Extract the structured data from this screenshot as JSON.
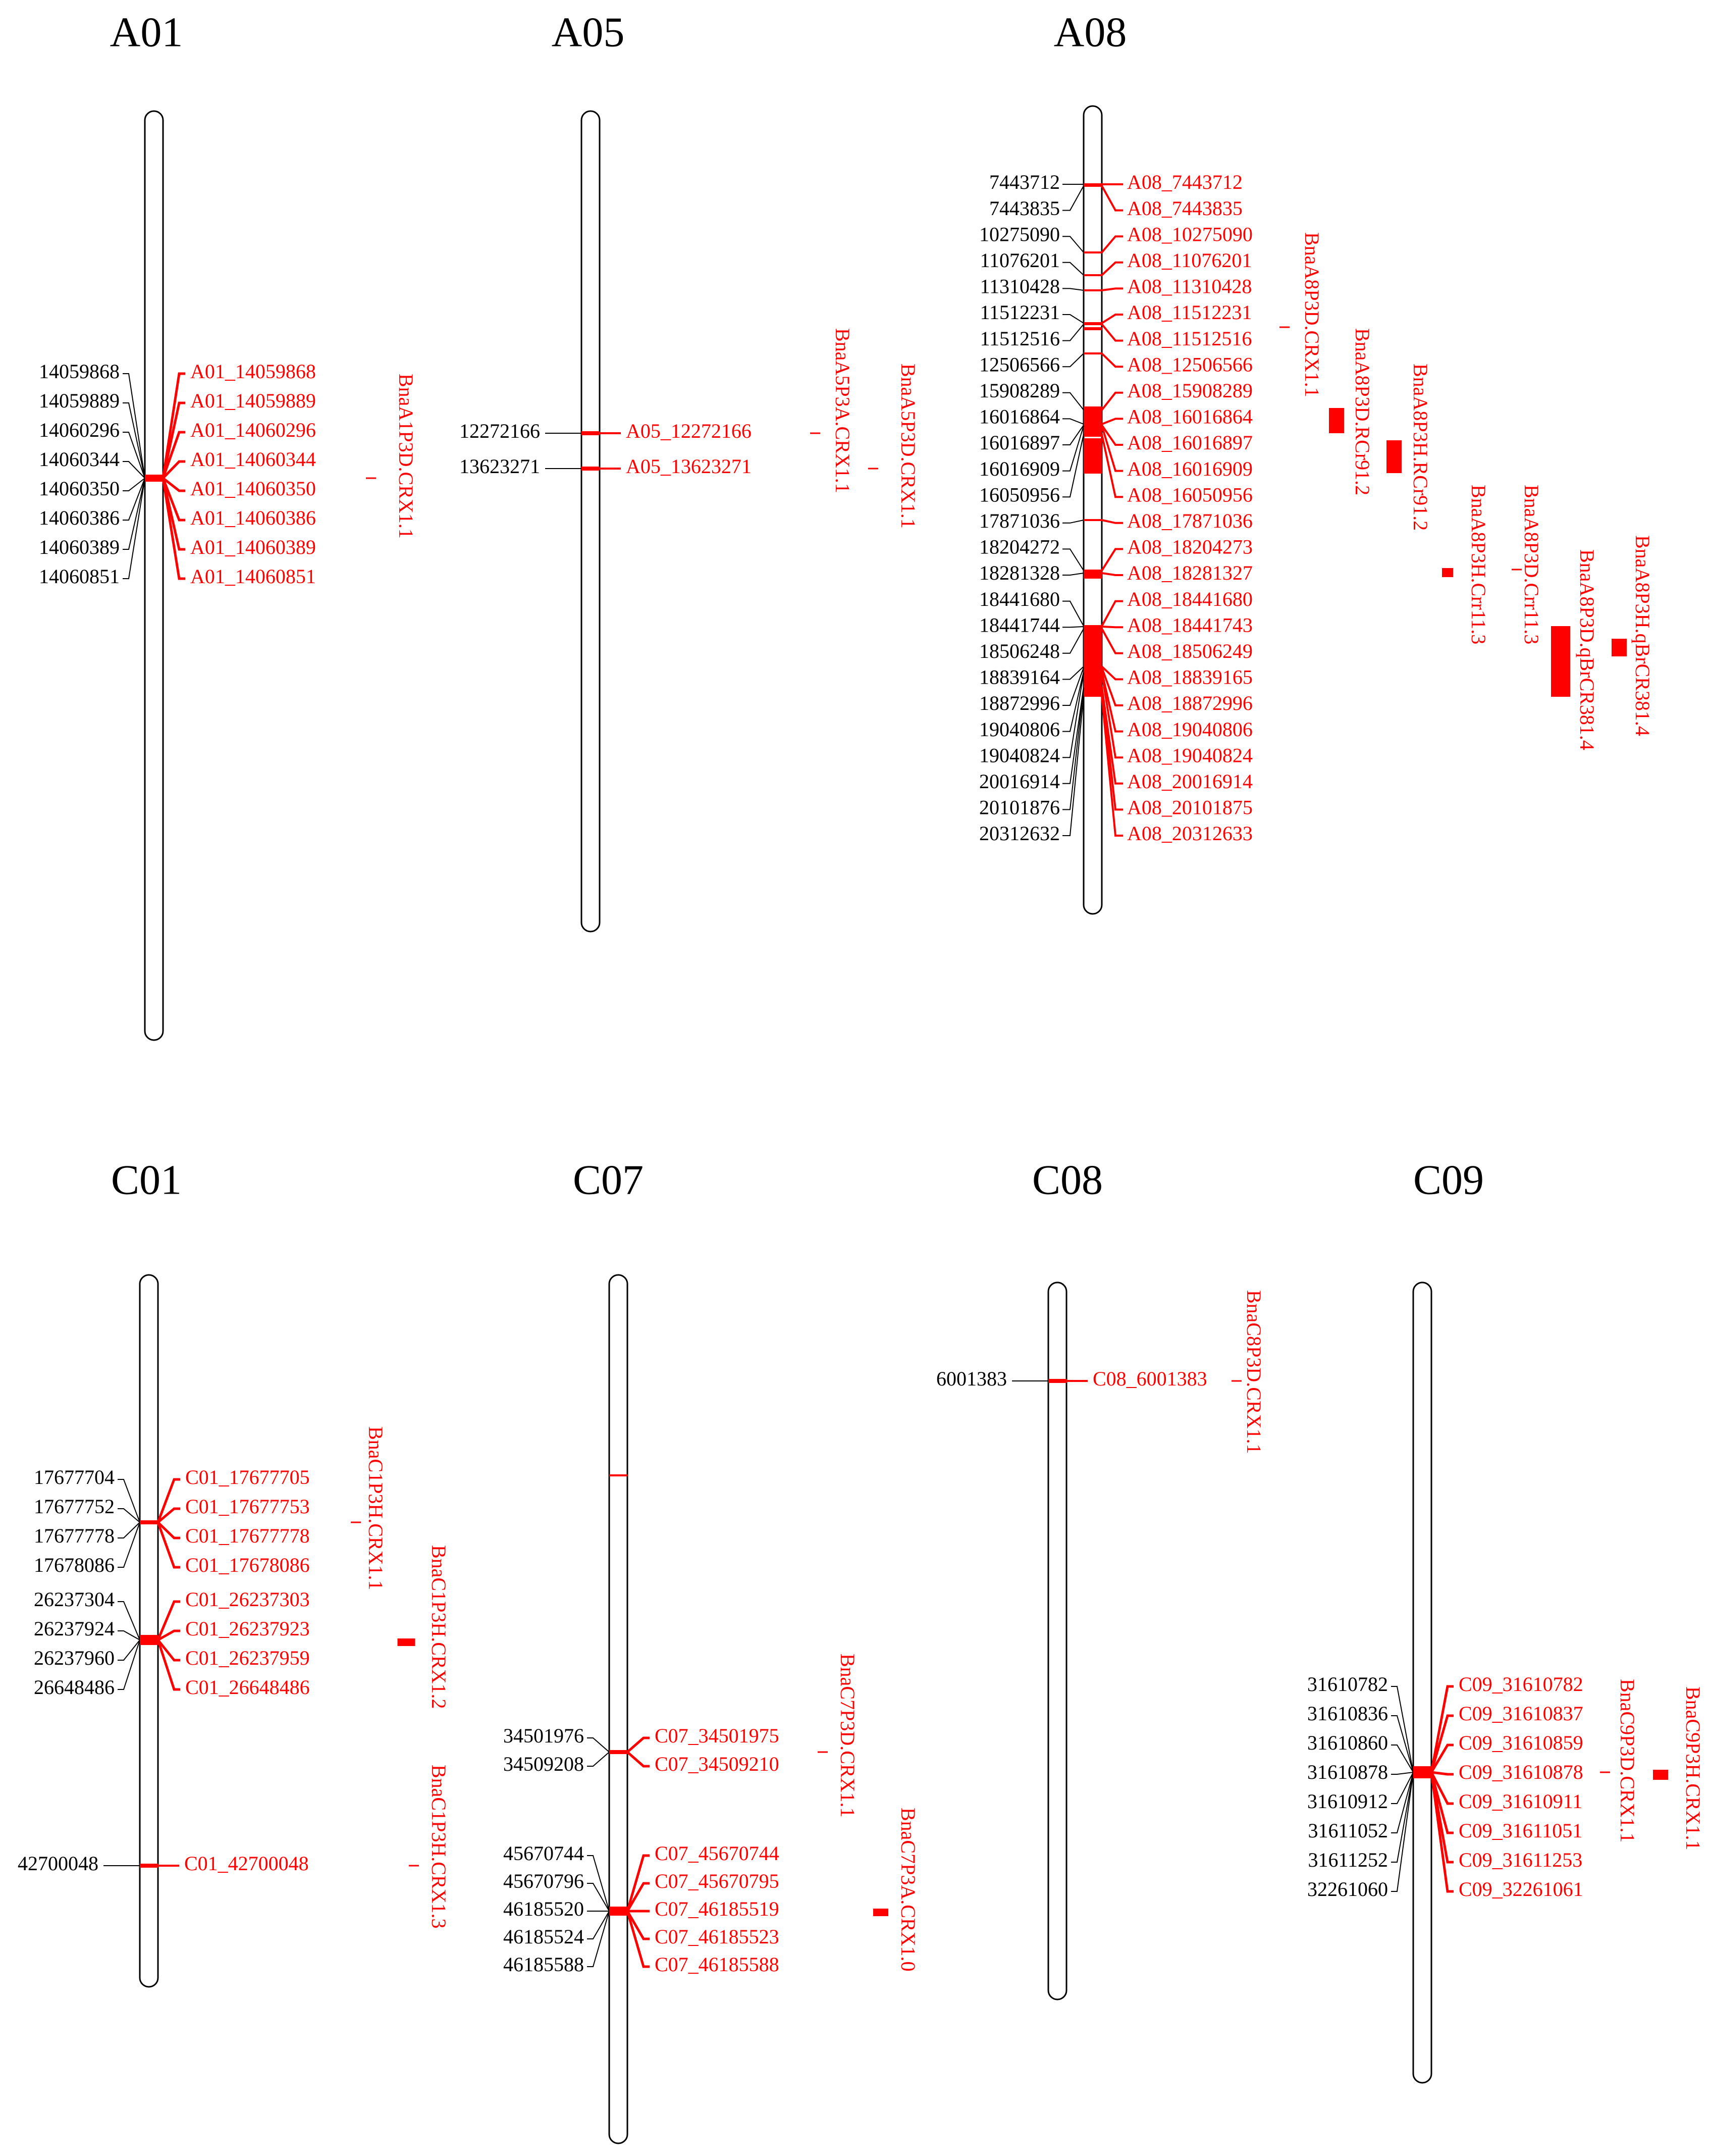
{
  "colors": {
    "marker": "#ff0000",
    "chromosome": "#000000",
    "text": "#000000"
  },
  "chromosomes": [
    {
      "title": "A01",
      "markers": [
        {
          "pos": "14059868",
          "label": "A01_14059868"
        },
        {
          "pos": "14059889",
          "label": "A01_14059889"
        },
        {
          "pos": "14060296",
          "label": "A01_14060296"
        },
        {
          "pos": "14060344",
          "label": "A01_14060344"
        },
        {
          "pos": "14060350",
          "label": "A01_14060350"
        },
        {
          "pos": "14060386",
          "label": "A01_14060386"
        },
        {
          "pos": "14060389",
          "label": "A01_14060389"
        },
        {
          "pos": "14060851",
          "label": "A01_14060851"
        }
      ],
      "qtls": [
        {
          "name": "BnaA1P3D.CRX1.1"
        }
      ]
    },
    {
      "title": "A05",
      "markers": [
        {
          "pos": "12272166",
          "label": "A05_12272166"
        },
        {
          "pos": "13623271",
          "label": "A05_13623271"
        }
      ],
      "qtls": [
        {
          "name": "BnaA5P3A.CRX1.1"
        },
        {
          "name": "BnaA5P3D.CRX1.1"
        }
      ]
    },
    {
      "title": "A08",
      "markers": [
        {
          "pos": "7443712",
          "label": "A08_7443712"
        },
        {
          "pos": "7443835",
          "label": "A08_7443835"
        },
        {
          "pos": "10275090",
          "label": "A08_10275090"
        },
        {
          "pos": "11076201",
          "label": "A08_11076201"
        },
        {
          "pos": "11310428",
          "label": "A08_11310428"
        },
        {
          "pos": "11512231",
          "label": "A08_11512231"
        },
        {
          "pos": "11512516",
          "label": "A08_11512516"
        },
        {
          "pos": "12506566",
          "label": "A08_12506566"
        },
        {
          "pos": "15908289",
          "label": "A08_15908289"
        },
        {
          "pos": "16016864",
          "label": "A08_16016864"
        },
        {
          "pos": "16016897",
          "label": "A08_16016897"
        },
        {
          "pos": "16016909",
          "label": "A08_16016909"
        },
        {
          "pos": "16050956",
          "label": "A08_16050956"
        },
        {
          "pos": "17871036",
          "label": "A08_17871036"
        },
        {
          "pos": "18204272",
          "label": "A08_18204273"
        },
        {
          "pos": "18281328",
          "label": "A08_18281327"
        },
        {
          "pos": "18441680",
          "label": "A08_18441680"
        },
        {
          "pos": "18441744",
          "label": "A08_18441743"
        },
        {
          "pos": "18506248",
          "label": "A08_18506249"
        },
        {
          "pos": "18839164",
          "label": "A08_18839165"
        },
        {
          "pos": "18872996",
          "label": "A08_18872996"
        },
        {
          "pos": "19040806",
          "label": "A08_19040806"
        },
        {
          "pos": "19040824",
          "label": "A08_19040824"
        },
        {
          "pos": "20016914",
          "label": "A08_20016914"
        },
        {
          "pos": "20101876",
          "label": "A08_20101875"
        },
        {
          "pos": "20312632",
          "label": "A08_20312633"
        }
      ],
      "qtls": [
        {
          "name": "BnaA8P3D.CRX1.1"
        },
        {
          "name": "BnaA8P3D.RCr91.2"
        },
        {
          "name": "BnaA8P3H.RCr91.2"
        },
        {
          "name": "BnaA8P3H.Crr11.3"
        },
        {
          "name": "BnaA8P3D.Crr11.3"
        },
        {
          "name": "BnaA8P3D.qBrCR381.4"
        },
        {
          "name": "BnaA8P3H.qBrCR381.4"
        }
      ]
    },
    {
      "title": "C01",
      "markers": [
        {
          "pos": "17677704",
          "label": "C01_17677705"
        },
        {
          "pos": "17677752",
          "label": "C01_17677753"
        },
        {
          "pos": "17677778",
          "label": "C01_17677778"
        },
        {
          "pos": "17678086",
          "label": "C01_17678086"
        },
        {
          "pos": "26237304",
          "label": "C01_26237303"
        },
        {
          "pos": "26237924",
          "label": "C01_26237923"
        },
        {
          "pos": "26237960",
          "label": "C01_26237959"
        },
        {
          "pos": "26648486",
          "label": "C01_26648486"
        },
        {
          "pos": "42700048",
          "label": "C01_42700048"
        }
      ],
      "qtls": [
        {
          "name": "BnaC1P3H.CRX1.1"
        },
        {
          "name": "BnaC1P3H.CRX1.2"
        },
        {
          "name": "BnaC1P3H.CRX1.3"
        }
      ]
    },
    {
      "title": "C07",
      "markers": [
        {
          "pos": "34501976",
          "label": "C07_34501975"
        },
        {
          "pos": "34509208",
          "label": "C07_34509210"
        },
        {
          "pos": "45670744",
          "label": "C07_45670744"
        },
        {
          "pos": "45670796",
          "label": "C07_45670795"
        },
        {
          "pos": "46185520",
          "label": "C07_46185519"
        },
        {
          "pos": "46185524",
          "label": "C07_46185523"
        },
        {
          "pos": "46185588",
          "label": "C07_46185588"
        }
      ],
      "qtls": [
        {
          "name": "BnaC7P3D.CRX1.1"
        },
        {
          "name": "BnaC7P3A.CRX1.0"
        }
      ]
    },
    {
      "title": "C08",
      "markers": [
        {
          "pos": "6001383",
          "label": "C08_6001383"
        }
      ],
      "qtls": [
        {
          "name": "BnaC8P3D.CRX1.1"
        }
      ]
    },
    {
      "title": "C09",
      "markers": [
        {
          "pos": "31610782",
          "label": "C09_31610782"
        },
        {
          "pos": "31610836",
          "label": "C09_31610837"
        },
        {
          "pos": "31610860",
          "label": "C09_31610859"
        },
        {
          "pos": "31610878",
          "label": "C09_31610878"
        },
        {
          "pos": "31610912",
          "label": "C09_31610911"
        },
        {
          "pos": "31611052",
          "label": "C09_31611051"
        },
        {
          "pos": "31611252",
          "label": "C09_31611253"
        },
        {
          "pos": "32261060",
          "label": "C09_32261061"
        }
      ],
      "qtls": [
        {
          "name": "BnaC9P3D.CRX1.1"
        },
        {
          "name": "BnaC9P3H.CRX1.1"
        }
      ]
    }
  ]
}
